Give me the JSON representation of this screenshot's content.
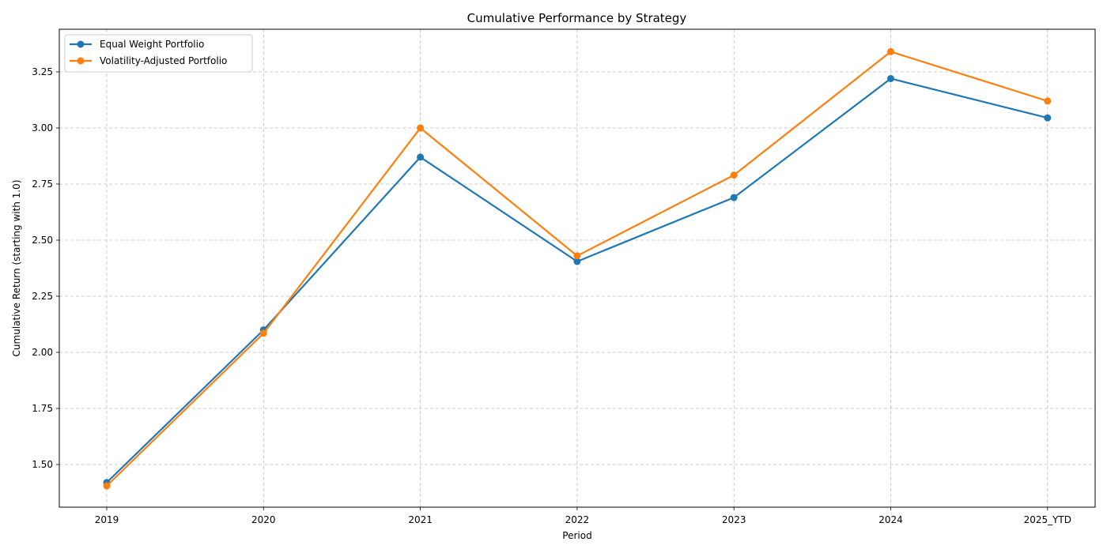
{
  "chart_data": {
    "type": "line",
    "title": "Cumulative Performance by Strategy",
    "xlabel": "Period",
    "ylabel": "Cumulative Return (starting with 1.0)",
    "categories": [
      "2019",
      "2020",
      "2021",
      "2022",
      "2023",
      "2024",
      "2025_YTD"
    ],
    "ylim": [
      1.31,
      3.44
    ],
    "yticks": [
      1.5,
      1.75,
      2.0,
      2.25,
      2.5,
      2.75,
      3.0,
      3.25
    ],
    "ytick_labels": [
      "1.50",
      "1.75",
      "2.00",
      "2.25",
      "2.50",
      "2.75",
      "3.00",
      "3.25"
    ],
    "grid": true,
    "legend_position": "top-left",
    "series": [
      {
        "name": "Equal Weight Portfolio",
        "color": "#1f77b4",
        "marker": "circle",
        "values": [
          1.42,
          2.1,
          2.87,
          2.405,
          2.69,
          3.22,
          3.045
        ]
      },
      {
        "name": "Volatility-Adjusted Portfolio",
        "color": "#ff7f0e",
        "marker": "circle",
        "values": [
          1.405,
          2.085,
          3.0,
          2.43,
          2.79,
          3.34,
          3.12
        ]
      }
    ]
  }
}
